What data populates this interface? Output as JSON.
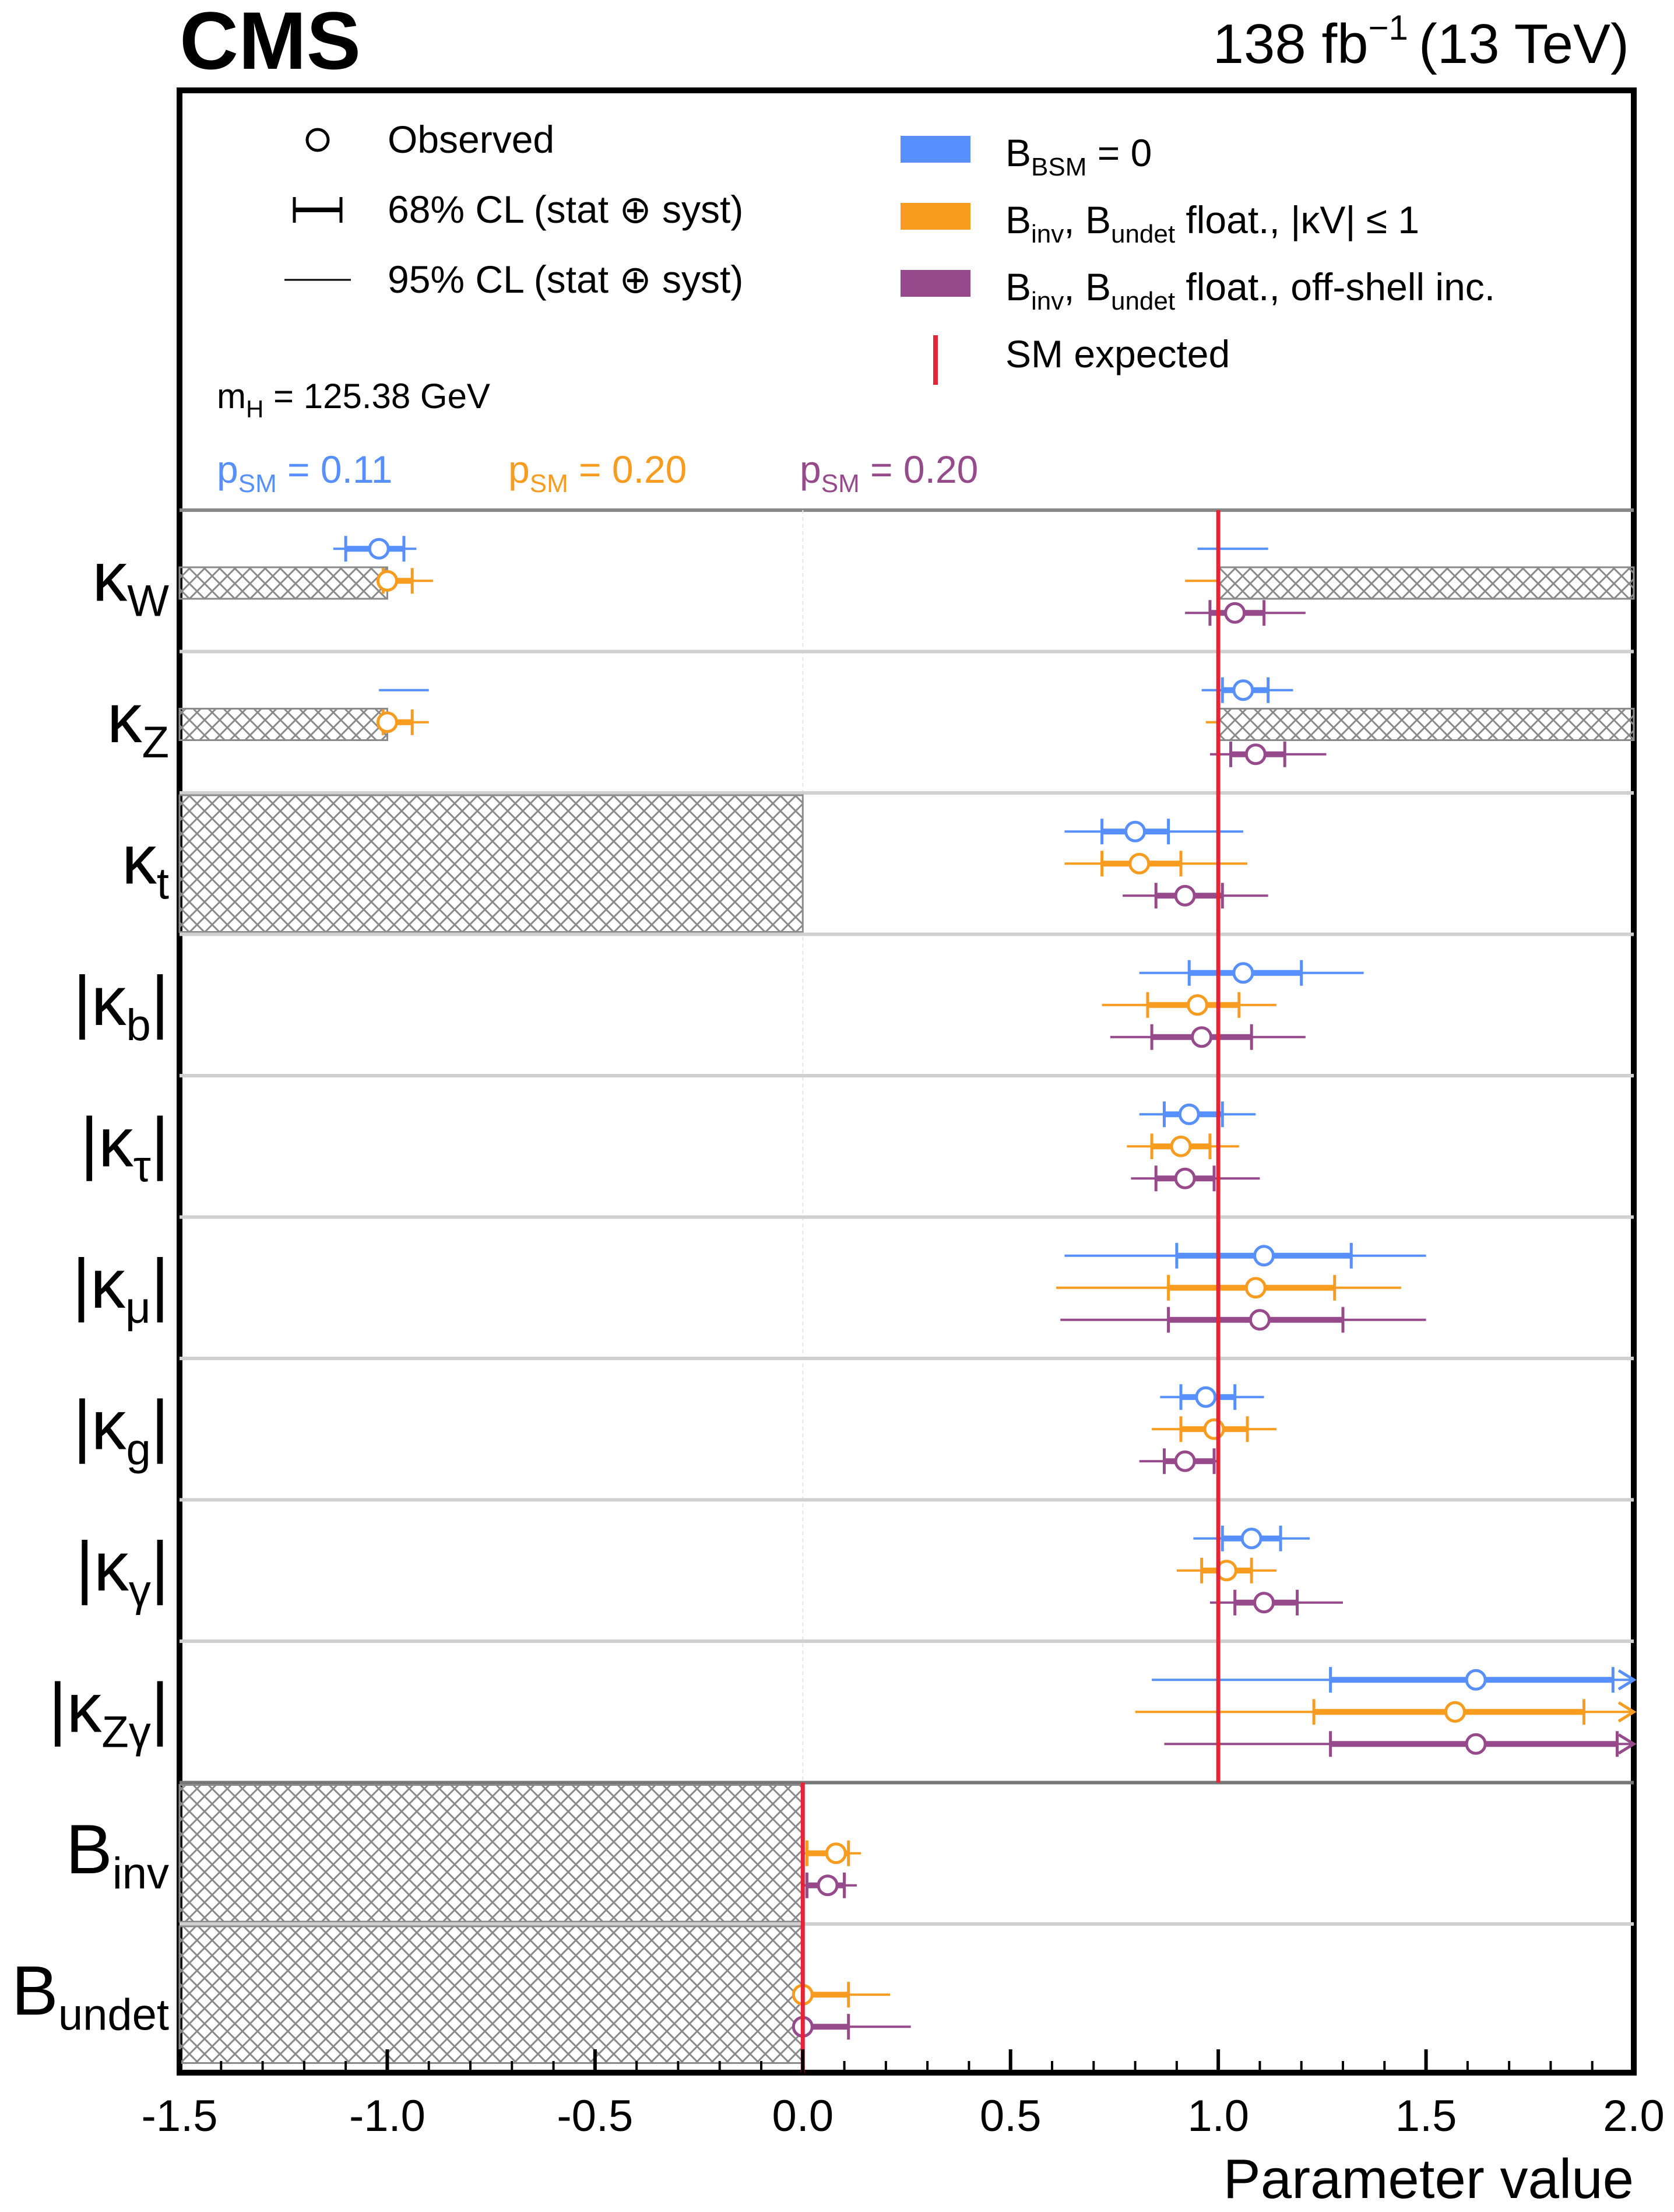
{
  "header": {
    "experiment": "CMS",
    "lumi": "138 fb",
    "lumi_exp": "−1",
    "energy": "(13 TeV)"
  },
  "legend": {
    "markers": [
      {
        "label": "Observed"
      },
      {
        "label": "68% CL (stat ⊕ syst)"
      },
      {
        "label": "95% CL (stat ⊕ syst)"
      }
    ],
    "models": [
      {
        "color": "#5790fc",
        "main": "B",
        "sub": "BSM",
        "rest": " = 0"
      },
      {
        "color": "#f89c20",
        "parts": [
          [
            "B",
            "inv"
          ],
          [
            ", B",
            "undet"
          ]
        ],
        "rest": " float., |κV| ≤ 1"
      },
      {
        "color": "#964a8b",
        "parts": [
          [
            "B",
            "inv"
          ],
          [
            ", B",
            "undet"
          ]
        ],
        "rest": " float., off-shell inc."
      }
    ],
    "sm_label": "SM expected",
    "sm_color": "#e42536",
    "mass": {
      "main": "m",
      "sub": "H",
      "rest": " = 125.38 GeV"
    },
    "psm": [
      {
        "main": "p",
        "sub": "SM",
        "rest": " = 0.11",
        "color": "#5790fc"
      },
      {
        "main": "p",
        "sub": "SM",
        "rest": " = 0.20",
        "color": "#f89c20"
      },
      {
        "main": "p",
        "sub": "SM",
        "rest": " = 0.20",
        "color": "#964a8b"
      }
    ]
  },
  "chart_data": {
    "type": "scatter",
    "xlabel": "Parameter value",
    "xlim": [
      -1.5,
      2.0
    ],
    "xticks": [
      "-1.5",
      "-1.0",
      "-0.5",
      "0.0",
      "0.5",
      "1.0",
      "1.5",
      "2.0"
    ],
    "xtick_values": [
      -1.5,
      -1.0,
      -0.5,
      0.0,
      0.5,
      1.0,
      1.5,
      2.0
    ],
    "series_names": [
      "B_BSM = 0",
      "B_inv, B_undet float., |kV| <= 1",
      "B_inv, B_undet float., off-shell inc."
    ],
    "parameters": [
      {
        "label": "κ",
        "sub": "W",
        "abs": false,
        "excluded": [
          [
            -1.5,
            -1.0
          ],
          [
            1.0,
            2.0
          ]
        ],
        "series": [
          {
            "central": -1.02,
            "cl68": [
              [
                -1.1,
                -0.96
              ]
            ],
            "cl95": [
              [
                -1.13,
                -0.93
              ],
              [
                0.95,
                1.12
              ]
            ]
          },
          {
            "central": -1.0,
            "cl68": [
              [
                -1.01,
                -0.94
              ]
            ],
            "cl95": [
              [
                -1.01,
                -0.89
              ],
              [
                0.92,
                1.0
              ]
            ]
          },
          {
            "central": 1.04,
            "cl68": [
              [
                0.98,
                1.11
              ]
            ],
            "cl95": [
              [
                0.92,
                1.21
              ]
            ]
          }
        ]
      },
      {
        "label": "κ",
        "sub": "Z",
        "abs": false,
        "excluded": [
          [
            -1.5,
            -1.0
          ],
          [
            1.0,
            2.0
          ]
        ],
        "series": [
          {
            "central": 1.06,
            "cl68": [
              [
                1.01,
                1.12
              ]
            ],
            "cl95": [
              [
                -1.02,
                -0.9
              ],
              [
                0.96,
                1.18
              ]
            ]
          },
          {
            "central": -1.0,
            "cl68": [
              [
                -1.01,
                -0.94
              ]
            ],
            "cl95": [
              [
                -1.01,
                -0.9
              ],
              [
                0.97,
                1.0
              ]
            ]
          },
          {
            "central": 1.09,
            "cl68": [
              [
                1.03,
                1.16
              ]
            ],
            "cl95": [
              [
                0.98,
                1.26
              ]
            ]
          }
        ]
      },
      {
        "label": "κ",
        "sub": "t",
        "abs": false,
        "excluded": [
          [
            -1.5,
            0.0
          ]
        ],
        "series": [
          {
            "central": 0.8,
            "cl68": [
              [
                0.72,
                0.88
              ]
            ],
            "cl95": [
              [
                0.63,
                1.06
              ]
            ]
          },
          {
            "central": 0.81,
            "cl68": [
              [
                0.72,
                0.91
              ]
            ],
            "cl95": [
              [
                0.63,
                1.07
              ]
            ]
          },
          {
            "central": 0.92,
            "cl68": [
              [
                0.85,
                1.01
              ]
            ],
            "cl95": [
              [
                0.77,
                1.12
              ]
            ]
          }
        ]
      },
      {
        "label": "κ",
        "sub": "b",
        "abs": true,
        "excluded": [],
        "series": [
          {
            "central": 1.06,
            "cl68": [
              [
                0.93,
                1.2
              ]
            ],
            "cl95": [
              [
                0.81,
                1.35
              ]
            ]
          },
          {
            "central": 0.95,
            "cl68": [
              [
                0.83,
                1.05
              ]
            ],
            "cl95": [
              [
                0.72,
                1.14
              ]
            ]
          },
          {
            "central": 0.96,
            "cl68": [
              [
                0.84,
                1.08
              ]
            ],
            "cl95": [
              [
                0.74,
                1.21
              ]
            ]
          }
        ]
      },
      {
        "label": "κ",
        "sub": "τ",
        "abs": true,
        "excluded": [],
        "series": [
          {
            "central": 0.93,
            "cl68": [
              [
                0.87,
                1.01
              ]
            ],
            "cl95": [
              [
                0.81,
                1.09
              ]
            ]
          },
          {
            "central": 0.91,
            "cl68": [
              [
                0.84,
                0.98
              ]
            ],
            "cl95": [
              [
                0.78,
                1.05
              ]
            ]
          },
          {
            "central": 0.92,
            "cl68": [
              [
                0.85,
                0.99
              ]
            ],
            "cl95": [
              [
                0.79,
                1.1
              ]
            ]
          }
        ]
      },
      {
        "label": "κ",
        "sub": "μ",
        "abs": true,
        "excluded": [],
        "series": [
          {
            "central": 1.11,
            "cl68": [
              [
                0.9,
                1.32
              ]
            ],
            "cl95": [
              [
                0.63,
                1.5
              ]
            ]
          },
          {
            "central": 1.09,
            "cl68": [
              [
                0.88,
                1.28
              ]
            ],
            "cl95": [
              [
                0.61,
                1.44
              ]
            ]
          },
          {
            "central": 1.1,
            "cl68": [
              [
                0.88,
                1.3
              ]
            ],
            "cl95": [
              [
                0.62,
                1.5
              ]
            ]
          }
        ]
      },
      {
        "label": "κ",
        "sub": "g",
        "abs": true,
        "excluded": [],
        "series": [
          {
            "central": 0.97,
            "cl68": [
              [
                0.91,
                1.04
              ]
            ],
            "cl95": [
              [
                0.86,
                1.11
              ]
            ]
          },
          {
            "central": 0.99,
            "cl68": [
              [
                0.91,
                1.07
              ]
            ],
            "cl95": [
              [
                0.84,
                1.14
              ]
            ]
          },
          {
            "central": 0.92,
            "cl68": [
              [
                0.87,
                0.99
              ]
            ],
            "cl95": [
              [
                0.81,
                1.0
              ]
            ]
          }
        ]
      },
      {
        "label": "κ",
        "sub": "γ",
        "abs": true,
        "excluded": [],
        "series": [
          {
            "central": 1.08,
            "cl68": [
              [
                1.01,
                1.15
              ]
            ],
            "cl95": [
              [
                0.94,
                1.22
              ]
            ]
          },
          {
            "central": 1.02,
            "cl68": [
              [
                0.96,
                1.08
              ]
            ],
            "cl95": [
              [
                0.9,
                1.14
              ]
            ]
          },
          {
            "central": 1.11,
            "cl68": [
              [
                1.04,
                1.19
              ]
            ],
            "cl95": [
              [
                0.98,
                1.3
              ]
            ]
          }
        ]
      },
      {
        "label": "κ",
        "sub": "Zγ",
        "abs": true,
        "excluded": [],
        "series": [
          {
            "central": 1.62,
            "cl68": [
              [
                1.27,
                1.95
              ]
            ],
            "cl95": [
              [
                0.84,
                2.0
              ]
            ],
            "arrow": true
          },
          {
            "central": 1.57,
            "cl68": [
              [
                1.23,
                1.88
              ]
            ],
            "cl95": [
              [
                0.8,
                2.0
              ]
            ],
            "arrow": true
          },
          {
            "central": 1.62,
            "cl68": [
              [
                1.27,
                1.96
              ]
            ],
            "cl95": [
              [
                0.87,
                2.0
              ]
            ],
            "arrow": true
          }
        ]
      },
      {
        "label": "B",
        "sub": "inv",
        "abs": false,
        "excluded": [
          [
            -1.5,
            0.0
          ]
        ],
        "series": [
          null,
          {
            "central": 0.08,
            "cl68": [
              [
                0.01,
                0.11
              ]
            ],
            "cl95": [
              [
                0.0,
                0.14
              ]
            ]
          },
          {
            "central": 0.06,
            "cl68": [
              [
                0.01,
                0.1
              ]
            ],
            "cl95": [
              [
                0.0,
                0.13
              ]
            ]
          }
        ]
      },
      {
        "label": "B",
        "sub": "undet",
        "abs": false,
        "excluded": [
          [
            -1.5,
            0.0
          ]
        ],
        "series": [
          null,
          {
            "central": 0.0,
            "cl68": [
              [
                0.0,
                0.11
              ]
            ],
            "cl95": [
              [
                0.0,
                0.21
              ]
            ]
          },
          {
            "central": 0.0,
            "cl68": [
              [
                0.0,
                0.11
              ]
            ],
            "cl95": [
              [
                0.0,
                0.26
              ]
            ]
          }
        ]
      }
    ]
  }
}
